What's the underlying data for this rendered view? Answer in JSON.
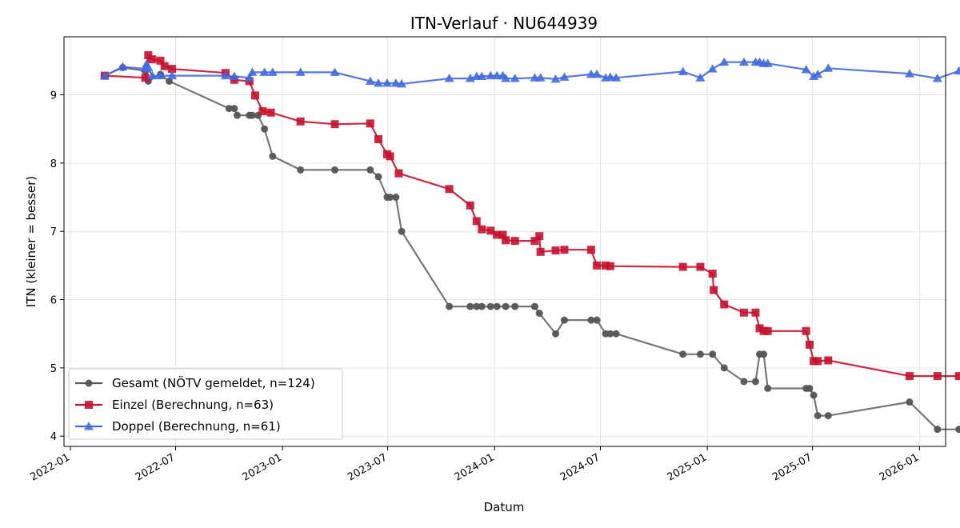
{
  "chart_data": {
    "type": "line",
    "title": "ITN-Verlauf · NU644939",
    "xlabel": "Datum",
    "ylabel": "ITN  (kleiner = besser)",
    "x_ticks": [
      "2022-01",
      "2022-07",
      "2023-01",
      "2023-07",
      "2024-01",
      "2024-07",
      "2025-01",
      "2025-07",
      "2026-01"
    ],
    "y_ticks": [
      "4",
      "5",
      "6",
      "7",
      "8",
      "9"
    ],
    "xlim": [
      "2021-12-21",
      "2026-02-15"
    ],
    "ylim": [
      3.85,
      9.85
    ],
    "grid": true,
    "legend_position": "lower-left",
    "series": [
      {
        "name": "Gesamt (NÖTV gemeldet, n=124)",
        "color": "#555555",
        "marker": "circle",
        "points": [
          [
            "2022-03-01",
            9.28
          ],
          [
            "2022-04-01",
            9.4
          ],
          [
            "2022-05-10",
            9.35
          ],
          [
            "2022-05-15",
            9.2
          ],
          [
            "2022-06-05",
            9.3
          ],
          [
            "2022-06-20",
            9.2
          ],
          [
            "2022-10-01",
            8.8
          ],
          [
            "2022-10-10",
            8.8
          ],
          [
            "2022-10-15",
            8.7
          ],
          [
            "2022-11-05",
            8.7
          ],
          [
            "2022-11-10",
            8.7
          ],
          [
            "2022-11-20",
            8.7
          ],
          [
            "2022-12-01",
            8.5
          ],
          [
            "2022-12-15",
            8.1
          ],
          [
            "2023-02-01",
            7.9
          ],
          [
            "2023-04-01",
            7.9
          ],
          [
            "2023-06-01",
            7.9
          ],
          [
            "2023-06-15",
            7.8
          ],
          [
            "2023-06-30",
            7.5
          ],
          [
            "2023-07-05",
            7.5
          ],
          [
            "2023-07-15",
            7.5
          ],
          [
            "2023-07-25",
            7.0
          ],
          [
            "2023-10-15",
            5.9
          ],
          [
            "2023-11-20",
            5.9
          ],
          [
            "2023-12-01",
            5.9
          ],
          [
            "2023-12-10",
            5.9
          ],
          [
            "2023-12-25",
            5.9
          ],
          [
            "2024-01-05",
            5.9
          ],
          [
            "2024-01-20",
            5.9
          ],
          [
            "2024-02-05",
            5.9
          ],
          [
            "2024-03-10",
            5.9
          ],
          [
            "2024-03-18",
            5.8
          ],
          [
            "2024-04-15",
            5.5
          ],
          [
            "2024-04-30",
            5.7
          ],
          [
            "2024-06-15",
            5.7
          ],
          [
            "2024-06-25",
            5.7
          ],
          [
            "2024-07-10",
            5.5
          ],
          [
            "2024-07-18",
            5.5
          ],
          [
            "2024-07-28",
            5.5
          ],
          [
            "2024-11-20",
            5.2
          ],
          [
            "2024-12-20",
            5.2
          ],
          [
            "2025-01-10",
            5.2
          ],
          [
            "2025-01-30",
            5.0
          ],
          [
            "2025-03-05",
            4.8
          ],
          [
            "2025-03-25",
            4.8
          ],
          [
            "2025-04-01",
            5.2
          ],
          [
            "2025-04-08",
            5.2
          ],
          [
            "2025-04-15",
            4.7
          ],
          [
            "2025-06-20",
            4.7
          ],
          [
            "2025-06-26",
            4.7
          ],
          [
            "2025-07-03",
            4.6
          ],
          [
            "2025-07-10",
            4.3
          ],
          [
            "2025-07-28",
            4.3
          ],
          [
            "2025-12-15",
            4.5
          ],
          [
            "2026-02-01",
            4.1
          ],
          [
            "2026-03-10",
            4.1
          ]
        ]
      },
      {
        "name": "Einzel (Berechnung, n=63)",
        "color": "#c8102e",
        "marker": "square",
        "points": [
          [
            "2022-03-01",
            9.28
          ],
          [
            "2022-05-10",
            9.25
          ],
          [
            "2022-05-15",
            9.58
          ],
          [
            "2022-05-22",
            9.52
          ],
          [
            "2022-06-05",
            9.5
          ],
          [
            "2022-06-12",
            9.42
          ],
          [
            "2022-06-25",
            9.38
          ],
          [
            "2022-09-25",
            9.32
          ],
          [
            "2022-10-10",
            9.22
          ],
          [
            "2022-11-05",
            9.2
          ],
          [
            "2022-11-15",
            8.99
          ],
          [
            "2022-11-28",
            8.76
          ],
          [
            "2022-12-12",
            8.74
          ],
          [
            "2023-02-01",
            8.61
          ],
          [
            "2023-04-01",
            8.57
          ],
          [
            "2023-06-01",
            8.58
          ],
          [
            "2023-06-15",
            8.35
          ],
          [
            "2023-06-30",
            8.13
          ],
          [
            "2023-07-05",
            8.1
          ],
          [
            "2023-07-20",
            7.85
          ],
          [
            "2023-10-15",
            7.62
          ],
          [
            "2023-11-20",
            7.38
          ],
          [
            "2023-12-01",
            7.15
          ],
          [
            "2023-12-10",
            7.03
          ],
          [
            "2023-12-25",
            7.01
          ],
          [
            "2024-01-05",
            6.95
          ],
          [
            "2024-01-15",
            6.95
          ],
          [
            "2024-01-20",
            6.87
          ],
          [
            "2024-02-05",
            6.86
          ],
          [
            "2024-03-10",
            6.86
          ],
          [
            "2024-03-18",
            6.93
          ],
          [
            "2024-03-20",
            6.7
          ],
          [
            "2024-04-15",
            6.72
          ],
          [
            "2024-04-30",
            6.73
          ],
          [
            "2024-06-15",
            6.73
          ],
          [
            "2024-06-25",
            6.5
          ],
          [
            "2024-07-10",
            6.5
          ],
          [
            "2024-07-18",
            6.49
          ],
          [
            "2024-11-20",
            6.48
          ],
          [
            "2024-12-20",
            6.48
          ],
          [
            "2025-01-10",
            6.38
          ],
          [
            "2025-01-12",
            6.14
          ],
          [
            "2025-01-30",
            5.93
          ],
          [
            "2025-03-05",
            5.81
          ],
          [
            "2025-03-25",
            5.81
          ],
          [
            "2025-04-01",
            5.58
          ],
          [
            "2025-04-08",
            5.54
          ],
          [
            "2025-04-15",
            5.54
          ],
          [
            "2025-06-20",
            5.54
          ],
          [
            "2025-06-26",
            5.34
          ],
          [
            "2025-07-03",
            5.1
          ],
          [
            "2025-07-10",
            5.1
          ],
          [
            "2025-07-28",
            5.11
          ],
          [
            "2025-12-15",
            4.88
          ],
          [
            "2026-02-01",
            4.88
          ],
          [
            "2026-03-10",
            4.88
          ]
        ]
      },
      {
        "name": "Doppel (Berechnung, n=61)",
        "color": "#4169e1",
        "marker": "triangle",
        "points": [
          [
            "2022-03-01",
            9.28
          ],
          [
            "2022-04-01",
            9.41
          ],
          [
            "2022-05-10",
            9.38
          ],
          [
            "2022-05-12",
            9.45
          ],
          [
            "2022-05-15",
            9.4
          ],
          [
            "2022-05-22",
            9.28
          ],
          [
            "2022-06-05",
            9.28
          ],
          [
            "2022-06-25",
            9.28
          ],
          [
            "2022-09-25",
            9.28
          ],
          [
            "2022-10-10",
            9.27
          ],
          [
            "2022-11-05",
            9.25
          ],
          [
            "2022-11-10",
            9.33
          ],
          [
            "2022-12-01",
            9.33
          ],
          [
            "2022-12-15",
            9.33
          ],
          [
            "2023-02-01",
            9.33
          ],
          [
            "2023-04-01",
            9.33
          ],
          [
            "2023-06-01",
            9.2
          ],
          [
            "2023-06-15",
            9.17
          ],
          [
            "2023-06-30",
            9.17
          ],
          [
            "2023-07-15",
            9.17
          ],
          [
            "2023-07-25",
            9.16
          ],
          [
            "2023-10-15",
            9.24
          ],
          [
            "2023-11-20",
            9.24
          ],
          [
            "2023-12-01",
            9.27
          ],
          [
            "2023-12-10",
            9.27
          ],
          [
            "2023-12-25",
            9.28
          ],
          [
            "2024-01-05",
            9.28
          ],
          [
            "2024-01-15",
            9.28
          ],
          [
            "2024-01-20",
            9.24
          ],
          [
            "2024-02-05",
            9.24
          ],
          [
            "2024-03-10",
            9.25
          ],
          [
            "2024-03-20",
            9.25
          ],
          [
            "2024-04-15",
            9.23
          ],
          [
            "2024-04-30",
            9.26
          ],
          [
            "2024-06-15",
            9.3
          ],
          [
            "2024-06-25",
            9.3
          ],
          [
            "2024-07-10",
            9.25
          ],
          [
            "2024-07-18",
            9.26
          ],
          [
            "2024-07-28",
            9.25
          ],
          [
            "2024-11-20",
            9.34
          ],
          [
            "2024-12-20",
            9.25
          ],
          [
            "2025-01-10",
            9.38
          ],
          [
            "2025-01-30",
            9.48
          ],
          [
            "2025-03-05",
            9.48
          ],
          [
            "2025-03-25",
            9.48
          ],
          [
            "2025-04-01",
            9.48
          ],
          [
            "2025-04-08",
            9.46
          ],
          [
            "2025-04-15",
            9.46
          ],
          [
            "2025-06-20",
            9.37
          ],
          [
            "2025-07-03",
            9.27
          ],
          [
            "2025-07-10",
            9.3
          ],
          [
            "2025-07-28",
            9.39
          ],
          [
            "2025-12-15",
            9.31
          ],
          [
            "2026-02-01",
            9.24
          ],
          [
            "2026-03-10",
            9.35
          ]
        ]
      }
    ]
  }
}
